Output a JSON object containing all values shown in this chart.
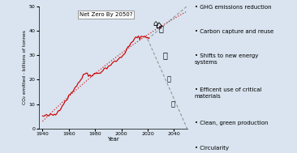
{
  "xlabel": "Year",
  "ylabel": "CO₂ emitted - billions of tonnes",
  "xlim": [
    1937,
    2050
  ],
  "ylim": [
    0,
    50
  ],
  "yticks": [
    0,
    10,
    20,
    30,
    40,
    50
  ],
  "xticks": [
    1940,
    1960,
    1980,
    2000,
    2020,
    2040
  ],
  "bg_color": "#d9e4f0",
  "line_color": "#cc0000",
  "dotted_color": "#cc0000",
  "dash_color": "#999999",
  "net_zero_label": "Net Zero By 2050?",
  "bullet_points": [
    "GHG emissions reduction",
    "Carbon capture and reuse",
    "Shifts to new energy\nsystems",
    "Efficent use of critical\nmaterials",
    "Clean, green production",
    "Circularity"
  ],
  "figsize": [
    3.66,
    1.89
  ],
  "dpi": 100
}
